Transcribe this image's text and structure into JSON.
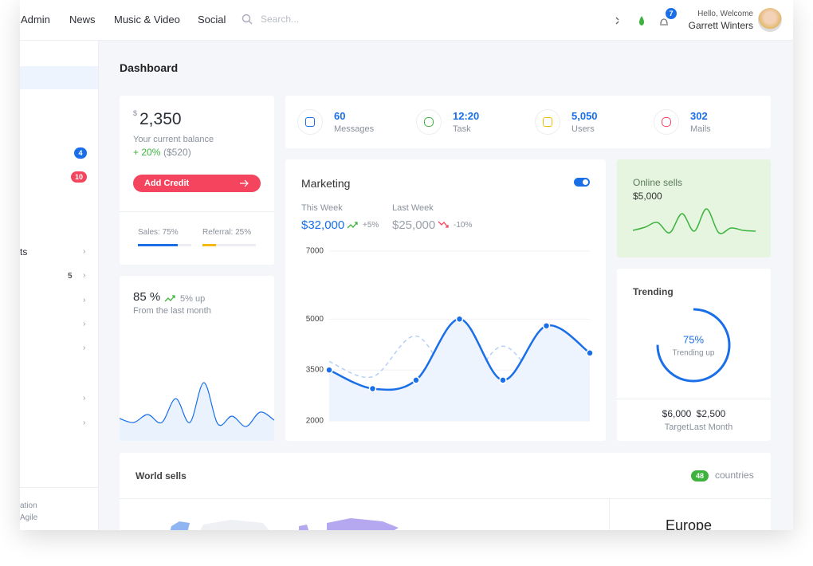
{
  "nav": {
    "items": [
      "Admin",
      "News",
      "Music & Video",
      "Social"
    ],
    "search": "Search...",
    "notification_count": "7",
    "greeting": "Hello, Welcome",
    "user": "Garrett Winters"
  },
  "sidebar": {
    "badges": [
      "4",
      "10"
    ],
    "item": "ts",
    "count": "5",
    "footer": [
      "ation",
      "Agile"
    ]
  },
  "page_title": "Dashboard",
  "balance": {
    "currency": "$",
    "amount": "2,350",
    "label": "Your current balance",
    "change": "+ 20%",
    "change_amount": "($520)",
    "button": "Add Credit",
    "sales": {
      "label": "Sales: 75%",
      "value": 75
    },
    "referral": {
      "label": "Referral: 25%",
      "value": 25
    }
  },
  "growth": {
    "value": "85 %",
    "change": "5% up",
    "period": "From the last month",
    "sparkline": [
      30,
      25,
      35,
      25,
      55,
      25,
      75,
      23,
      33,
      20,
      38,
      28
    ],
    "color": "#1a6fe8"
  },
  "stats": [
    {
      "value": "60",
      "label": "Messages",
      "color": "#1a6fe8"
    },
    {
      "value": "12:20",
      "label": "Task",
      "color": "#3db33d"
    },
    {
      "value": "5,050",
      "label": "Users",
      "color": "#f5b90f"
    },
    {
      "value": "302",
      "label": "Mails",
      "color": "#f5455e"
    }
  ],
  "marketing": {
    "title": "Marketing",
    "this_week": {
      "label": "This Week",
      "value": "$32,000",
      "change": "+5%"
    },
    "last_week": {
      "label": "Last Week",
      "value": "$25,000",
      "change": "-10%"
    },
    "chart": {
      "type": "line",
      "ylim": [
        2000,
        7000
      ],
      "yticks": [
        2000,
        3500,
        5000,
        7000
      ],
      "grid": true,
      "series": [
        {
          "color": "#1a6fe8",
          "values": [
            3500,
            2950,
            3200,
            5000,
            3200,
            4800,
            4000
          ]
        },
        {
          "color": "#b5d0f5",
          "dashed": true,
          "values": [
            3750,
            3300,
            4500,
            3000,
            4200,
            3000,
            3500
          ]
        }
      ]
    }
  },
  "online": {
    "title": "Online sells",
    "value": "$5,000",
    "sparkline": [
      11,
      15,
      21,
      8,
      32,
      10,
      38,
      8,
      14,
      11,
      10
    ],
    "color": "#3db33d"
  },
  "trending": {
    "title": "Trending",
    "value": 75,
    "value_label": "75%",
    "caption": "Trending up",
    "stats": [
      {
        "value": "$6,000",
        "label": "Target"
      },
      {
        "value": "$2,500",
        "label": "Last Month"
      }
    ]
  },
  "world": {
    "title": "World sells",
    "count": "48",
    "count_label": "countries",
    "region": "Europe"
  }
}
